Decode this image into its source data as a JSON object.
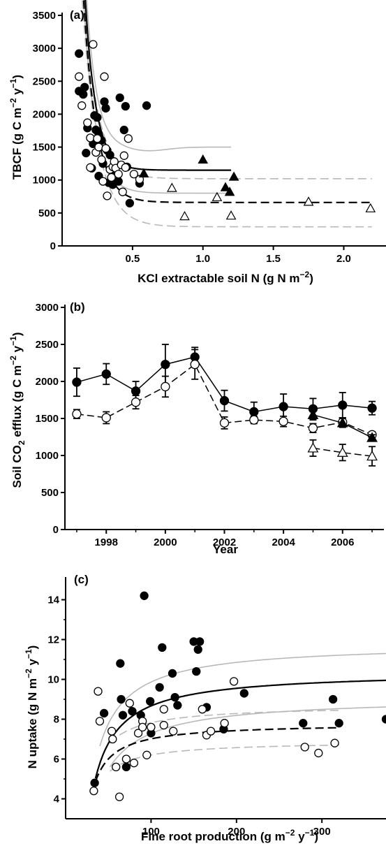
{
  "chart_data": [
    {
      "type": "scatter",
      "panel_label": "(a)",
      "xlabel": "KCl extractable soil N (g N m",
      "xlabel_sup": "−2",
      "xlabel_tail": ")",
      "ylabel": "TBCF (g C m",
      "ylabel_sup1": "−2",
      "ylabel_mid": " y",
      "ylabel_sup2": "−1",
      "ylabel_tail": ")",
      "xlim": [
        0,
        2.3
      ],
      "ylim": [
        0,
        3500
      ],
      "xticks": [
        0.5,
        1.0,
        1.5,
        2.0
      ],
      "xtick_labels": [
        "0.5",
        "1.0",
        "1.5",
        "2.0"
      ],
      "yticks": [
        0,
        500,
        1000,
        1500,
        2000,
        2500,
        3000,
        3500
      ],
      "ytick_labels": [
        "0",
        "500",
        "1000",
        "1500",
        "2000",
        "2500",
        "3000",
        "3500"
      ],
      "grid": false,
      "series": [
        {
          "marker": "filled-circle",
          "points": [
            [
              0.12,
              2920
            ],
            [
              0.12,
              2350
            ],
            [
              0.15,
              2300
            ],
            [
              0.16,
              2410
            ],
            [
              0.18,
              1790
            ],
            [
              0.17,
              1410
            ],
            [
              0.21,
              1180
            ],
            [
              0.23,
              1980
            ],
            [
              0.24,
              1760
            ],
            [
              0.25,
              1950
            ],
            [
              0.26,
              1700
            ],
            [
              0.28,
              1600
            ],
            [
              0.3,
              2190
            ],
            [
              0.31,
              2090
            ],
            [
              0.32,
              1450
            ],
            [
              0.34,
              1380
            ],
            [
              0.36,
              930
            ],
            [
              0.38,
              1100
            ],
            [
              0.4,
              980
            ],
            [
              0.41,
              2250
            ],
            [
              0.44,
              1760
            ],
            [
              0.45,
              2120
            ],
            [
              0.46,
              1200
            ],
            [
              0.48,
              650
            ],
            [
              0.55,
              950
            ],
            [
              0.6,
              2130
            ],
            [
              0.26,
              1060
            ],
            [
              0.29,
              1250
            ],
            [
              0.22,
              1550
            ],
            [
              0.33,
              960
            ]
          ]
        },
        {
          "marker": "open-circle",
          "points": [
            [
              0.12,
              2570
            ],
            [
              0.14,
              2130
            ],
            [
              0.18,
              1870
            ],
            [
              0.2,
              1640
            ],
            [
              0.22,
              3060
            ],
            [
              0.24,
              1420
            ],
            [
              0.26,
              1500
            ],
            [
              0.28,
              1310
            ],
            [
              0.3,
              2570
            ],
            [
              0.31,
              1480
            ],
            [
              0.32,
              760
            ],
            [
              0.34,
              1160
            ],
            [
              0.36,
              1200
            ],
            [
              0.37,
              1280
            ],
            [
              0.38,
              1180
            ],
            [
              0.4,
              1090
            ],
            [
              0.42,
              1230
            ],
            [
              0.44,
              1370
            ],
            [
              0.45,
              1190
            ],
            [
              0.47,
              1630
            ],
            [
              0.51,
              1090
            ],
            [
              0.55,
              1010
            ],
            [
              0.2,
              1190
            ],
            [
              0.29,
              980
            ],
            [
              0.43,
              820
            ],
            [
              0.35,
              1040
            ],
            [
              0.25,
              1630
            ]
          ]
        },
        {
          "marker": "filled-triangle",
          "points": [
            [
              0.58,
              1100
            ],
            [
              1.0,
              1310
            ],
            [
              1.16,
              890
            ],
            [
              1.19,
              820
            ],
            [
              1.22,
              1050
            ]
          ]
        },
        {
          "marker": "open-triangle",
          "points": [
            [
              0.78,
              880
            ],
            [
              0.87,
              450
            ],
            [
              1.1,
              740
            ],
            [
              1.2,
              460
            ],
            [
              1.75,
              670
            ],
            [
              2.19,
              570
            ]
          ]
        }
      ],
      "fits": [
        {
          "style": "black-solid",
          "a": 1150,
          "b": 4600,
          "k": 13,
          "x0": 0.12,
          "x1": 1.2
        },
        {
          "style": "black-dashed",
          "a": 660,
          "b": 4400,
          "k": 11,
          "x0": 0.12,
          "x1": 2.2
        },
        {
          "style": "grey-solid",
          "a": 1500,
          "b": 4800,
          "k": 14,
          "x0": 0.12,
          "x1": 1.2,
          "dip": 60
        },
        {
          "style": "grey-solid",
          "a": 800,
          "b": 4300,
          "k": 12,
          "x0": 0.12,
          "x1": 1.2
        },
        {
          "style": "grey-dashed",
          "a": 1020,
          "b": 3900,
          "k": 10,
          "x0": 0.12,
          "x1": 2.2
        },
        {
          "style": "grey-dashed",
          "a": 290,
          "b": 4200,
          "k": 9,
          "x0": 0.12,
          "x1": 2.2
        }
      ]
    },
    {
      "type": "line",
      "panel_label": "(b)",
      "xlabel": "Year",
      "ylabel": "Soil CO",
      "ylabel_sub": "2",
      "ylabel_mid": " efflux (g C m",
      "ylabel_sup1": "−2",
      "ylabel_mid2": " y",
      "ylabel_sup2": "−1",
      "ylabel_tail": ")",
      "xlim": [
        1996.6,
        2007.4
      ],
      "ylim": [
        0,
        3000
      ],
      "xticks": [
        1998,
        2000,
        2002,
        2004,
        2006
      ],
      "xtick_labels": [
        "1998",
        "2000",
        "2002",
        "2004",
        "2006"
      ],
      "xticks_minor": [
        1997,
        1999,
        2001,
        2003,
        2005,
        2007
      ],
      "yticks": [
        0,
        500,
        1000,
        1500,
        2000,
        2500,
        3000
      ],
      "ytick_labels": [
        "0",
        "500",
        "1000",
        "1500",
        "2000",
        "2500",
        "3000"
      ],
      "grid": false,
      "series": [
        {
          "marker": "filled-circle",
          "line": "solid",
          "x": [
            1997,
            1998,
            1999,
            2000,
            2001,
            2002,
            2003,
            2004,
            2005,
            2006,
            2007
          ],
          "y": [
            1990,
            2100,
            1870,
            2230,
            2330,
            1740,
            1590,
            1660,
            1630,
            1680,
            1640
          ],
          "err": [
            190,
            140,
            130,
            270,
            130,
            140,
            130,
            170,
            140,
            170,
            90
          ]
        },
        {
          "marker": "open-circle",
          "line": "dashed",
          "x": [
            1997,
            1998,
            1999,
            2000,
            2001,
            2002,
            2003,
            2004,
            2005,
            2006,
            2007
          ],
          "y": [
            1560,
            1510,
            1720,
            1930,
            2230,
            1440,
            1480,
            1460,
            1370,
            1450,
            1280
          ],
          "err": [
            60,
            80,
            90,
            140,
            200,
            80,
            50,
            70,
            60,
            60,
            40
          ]
        },
        {
          "marker": "filled-triangle",
          "line": "solid",
          "x": [
            2005,
            2006,
            2007
          ],
          "y": [
            1550,
            1440,
            1240
          ],
          "err": [
            70,
            60,
            40
          ]
        },
        {
          "marker": "open-triangle",
          "line": "dashed",
          "x": [
            2005,
            2006,
            2007
          ],
          "y": [
            1100,
            1040,
            990
          ],
          "err": [
            110,
            110,
            130
          ]
        }
      ]
    },
    {
      "type": "scatter",
      "panel_label": "(c)",
      "xlabel": "Fine root production (g m",
      "xlabel_sup1": "−2",
      "xlabel_mid": " y",
      "xlabel_sup2": "−1",
      "xlabel_tail": ")",
      "ylabel": "N uptake (g N m",
      "ylabel_sup1": "−2",
      "ylabel_mid": " y",
      "ylabel_sup2": "−1",
      "ylabel_tail": ")",
      "xlim": [
        0,
        375
      ],
      "ylim": [
        3,
        15
      ],
      "xticks": [
        100,
        200,
        300
      ],
      "xtick_labels": [
        "100",
        "200",
        "300"
      ],
      "yticks": [
        4,
        6,
        8,
        10,
        12,
        14
      ],
      "ytick_labels": [
        "4",
        "6",
        "8",
        "10",
        "12",
        "14"
      ],
      "yticks_minor": [
        5,
        7,
        9,
        11,
        13
      ],
      "grid": false,
      "series": [
        {
          "marker": "filled-circle",
          "points": [
            [
              34,
              4.8
            ],
            [
              45,
              8.3
            ],
            [
              64,
              10.8
            ],
            [
              65,
              9.0
            ],
            [
              67,
              8.2
            ],
            [
              71,
              5.6
            ],
            [
              78,
              8.4
            ],
            [
              88,
              8.2
            ],
            [
              92,
              14.2
            ],
            [
              99,
              8.9
            ],
            [
              100,
              7.3
            ],
            [
              110,
              9.6
            ],
            [
              113,
              11.6
            ],
            [
              125,
              10.3
            ],
            [
              128,
              9.1
            ],
            [
              131,
              8.7
            ],
            [
              150,
              11.9
            ],
            [
              155,
              11.5
            ],
            [
              157,
              11.9
            ],
            [
              153,
              10.4
            ],
            [
              165,
              8.6
            ],
            [
              185,
              7.5
            ],
            [
              209,
              9.3
            ],
            [
              278,
              7.8
            ],
            [
              313,
              9.0
            ],
            [
              320,
              7.8
            ],
            [
              375,
              8.0
            ]
          ]
        },
        {
          "marker": "open-circle",
          "points": [
            [
              33,
              4.4
            ],
            [
              38,
              9.4
            ],
            [
              40,
              7.9
            ],
            [
              54,
              7.4
            ],
            [
              55,
              7.0
            ],
            [
              59,
              5.6
            ],
            [
              63,
              4.1
            ],
            [
              71,
              6.0
            ],
            [
              75,
              8.8
            ],
            [
              80,
              5.8
            ],
            [
              85,
              7.3
            ],
            [
              90,
              7.9
            ],
            [
              95,
              6.2
            ],
            [
              100,
              7.6
            ],
            [
              115,
              8.5
            ],
            [
              126,
              7.4
            ],
            [
              160,
              8.5
            ],
            [
              165,
              7.2
            ],
            [
              170,
              7.4
            ],
            [
              186,
              7.8
            ],
            [
              197,
              9.9
            ],
            [
              280,
              6.6
            ],
            [
              296,
              6.3
            ],
            [
              315,
              6.8
            ],
            [
              90,
              7.6
            ],
            [
              115,
              7.7
            ]
          ]
        }
      ],
      "fits": [
        {
          "style": "black-solid",
          "vmax": 10.4,
          "km": 16,
          "x0": 35,
          "x1": 375
        },
        {
          "style": "black-dashed",
          "vmax": 7.8,
          "km": 9,
          "x0": 35,
          "x1": 320
        },
        {
          "style": "grey-solid",
          "vmax": 11.6,
          "km": 16,
          "x0": 40,
          "x1": 375,
          "offset": 0.2
        },
        {
          "style": "grey-solid",
          "vmax": 9.1,
          "km": 20,
          "x0": 52,
          "x1": 375
        },
        {
          "style": "grey-dashed",
          "vmax": 8.7,
          "km": 9,
          "x0": 52,
          "x1": 320
        },
        {
          "style": "grey-dashed",
          "vmax": 6.9,
          "km": 9,
          "x0": 52,
          "x1": 320
        }
      ]
    }
  ]
}
